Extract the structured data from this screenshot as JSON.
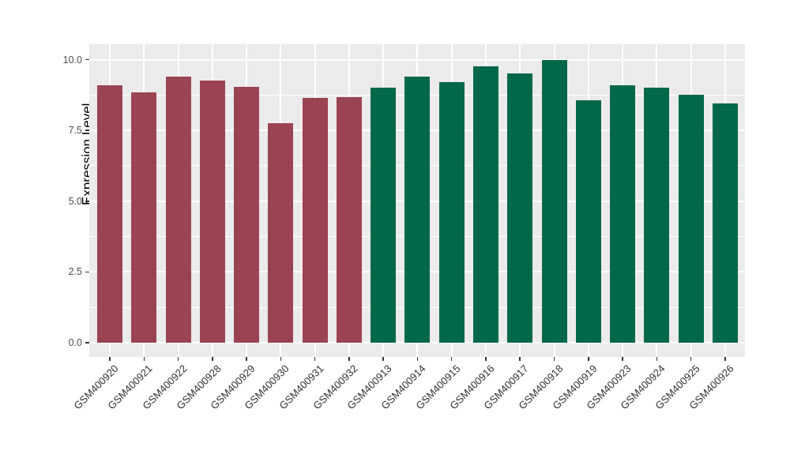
{
  "figure": {
    "background_color": "#FFFFFF",
    "panel_background_color": "#EBEBEB",
    "grid_color": "#FFFFFF",
    "tick_color": "#333333",
    "y_axis_text_color": "#4D4D4D",
    "x_axis_text_color": "#303030",
    "axis_title_color": "#000000"
  },
  "chart_data": {
    "type": "bar",
    "title": "",
    "xlabel": "",
    "ylabel": "Expression Level",
    "ylim": [
      0,
      10.5
    ],
    "yticks": [
      {
        "value": 0.0,
        "label": "0.0"
      },
      {
        "value": 2.5,
        "label": "2.5"
      },
      {
        "value": 5.0,
        "label": "5.0"
      },
      {
        "value": 7.5,
        "label": "7.5"
      },
      {
        "value": 10.0,
        "label": "10.0"
      }
    ],
    "minor_yticks": [
      1.25,
      3.75,
      6.25,
      8.75
    ],
    "grid": "on",
    "legend_position": "none",
    "group_colors": {
      "red": "#9A4452",
      "green": "#03684A"
    },
    "bars": [
      {
        "label": "GSM400920",
        "value": 9.1,
        "group": "red"
      },
      {
        "label": "GSM400921",
        "value": 8.85,
        "group": "red"
      },
      {
        "label": "GSM400922",
        "value": 9.4,
        "group": "red"
      },
      {
        "label": "GSM400928",
        "value": 9.25,
        "group": "red"
      },
      {
        "label": "GSM400929",
        "value": 9.05,
        "group": "red"
      },
      {
        "label": "GSM400930",
        "value": 7.75,
        "group": "red"
      },
      {
        "label": "GSM400931",
        "value": 8.65,
        "group": "red"
      },
      {
        "label": "GSM400932",
        "value": 8.68,
        "group": "red"
      },
      {
        "label": "GSM400913",
        "value": 9.0,
        "group": "green"
      },
      {
        "label": "GSM400914",
        "value": 9.4,
        "group": "green"
      },
      {
        "label": "GSM400915",
        "value": 9.2,
        "group": "green"
      },
      {
        "label": "GSM400916",
        "value": 9.75,
        "group": "green"
      },
      {
        "label": "GSM400917",
        "value": 9.5,
        "group": "green"
      },
      {
        "label": "GSM400918",
        "value": 10.0,
        "group": "green"
      },
      {
        "label": "GSM400919",
        "value": 8.55,
        "group": "green"
      },
      {
        "label": "GSM400923",
        "value": 9.1,
        "group": "green"
      },
      {
        "label": "GSM400924",
        "value": 9.0,
        "group": "green"
      },
      {
        "label": "GSM400925",
        "value": 8.75,
        "group": "green"
      },
      {
        "label": "GSM400926",
        "value": 8.45,
        "group": "green"
      }
    ]
  }
}
